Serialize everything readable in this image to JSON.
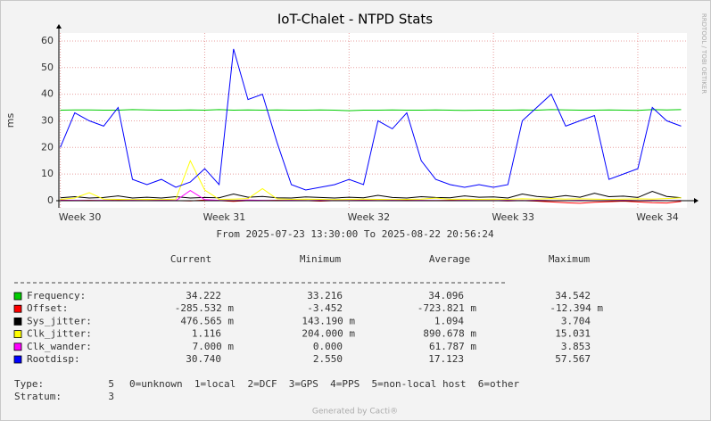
{
  "chart_data": {
    "type": "line",
    "title": "IoT-Chalet - NTPD Stats",
    "subtitle": "From 2025-07-23 13:30:00 To 2025-08-22 20:56:24",
    "ylabel": "ms",
    "watermark": "RRDTOOL / TOBI OETIKER",
    "footer": "Generated by Cacti®",
    "grid": true,
    "xlim": [
      29.99,
      34.34
    ],
    "xticks": [
      {
        "value": 30,
        "label": "Week 30"
      },
      {
        "value": 31,
        "label": "Week 31"
      },
      {
        "value": 32,
        "label": "Week 32"
      },
      {
        "value": 33,
        "label": "Week 33"
      },
      {
        "value": 34,
        "label": "Week 34"
      }
    ],
    "ylim": [
      -2.7,
      63
    ],
    "yticks": [
      0,
      10,
      20,
      30,
      40,
      50,
      60
    ],
    "x": [
      30.0,
      30.1,
      30.2,
      30.3,
      30.4,
      30.5,
      30.6,
      30.7,
      30.8,
      30.9,
      31.0,
      31.1,
      31.2,
      31.3,
      31.4,
      31.5,
      31.6,
      31.7,
      31.8,
      31.9,
      32.0,
      32.1,
      32.2,
      32.3,
      32.4,
      32.5,
      32.6,
      32.7,
      32.8,
      32.9,
      33.0,
      33.1,
      33.2,
      33.3,
      33.4,
      33.5,
      33.6,
      33.7,
      33.8,
      33.9,
      34.0,
      34.1,
      34.2,
      34.3
    ],
    "stat_headers": [
      "Current",
      "Minimum",
      "Average",
      "Maximum"
    ],
    "series": [
      {
        "name": "Frequency:",
        "color": "#00cc00",
        "stats": [
          "34.222",
          "33.216",
          "34.096",
          "34.542"
        ],
        "values": [
          34,
          34.1,
          34.1,
          34,
          34,
          34.2,
          34.1,
          34,
          34,
          34.1,
          34,
          34.2,
          34,
          34.1,
          34,
          34.1,
          34,
          34,
          34.1,
          34,
          33.8,
          34,
          34,
          34.1,
          34,
          34,
          34.1,
          34,
          33.9,
          34,
          34,
          34,
          34.1,
          34,
          34.2,
          34.1,
          34,
          34,
          34.1,
          34,
          33.9,
          34.2,
          34.1,
          34.2
        ]
      },
      {
        "name": "Offset:",
        "color": "#ff0000",
        "stats": [
          "-285.532 m",
          "-3.452",
          "-723.821 m",
          "-12.394 m"
        ],
        "values": [
          0.2,
          0,
          0.1,
          0,
          0.1,
          0,
          0,
          0.1,
          0,
          -0.1,
          0.2,
          0,
          -0.3,
          0,
          0,
          0.1,
          0,
          0,
          -0.2,
          0,
          0,
          0.1,
          0,
          0,
          0.1,
          0,
          0,
          0.1,
          0,
          0,
          0,
          -0.1,
          0,
          -0.2,
          -0.5,
          -0.8,
          -1,
          -0.6,
          -0.4,
          -0.2,
          -0.5,
          -0.8,
          -0.9,
          -0.3
        ]
      },
      {
        "name": "Sys_jitter:",
        "color": "#000000",
        "stats": [
          "476.565 m",
          "143.190 m",
          "1.094",
          "3.704"
        ],
        "values": [
          1.1,
          1.5,
          1,
          1.2,
          1.8,
          1,
          1.3,
          1,
          1.5,
          1,
          1.2,
          1.1,
          2.5,
          1.3,
          1.6,
          1.1,
          1,
          1.4,
          1.2,
          1,
          1.3,
          1.1,
          2,
          1.2,
          1,
          1.5,
          1.2,
          1.1,
          1.8,
          1.3,
          1.4,
          1,
          2.5,
          1.6,
          1.2,
          1.9,
          1.3,
          2.8,
          1.5,
          1.7,
          1.2,
          3.5,
          1.6,
          1.1
        ]
      },
      {
        "name": "Clk_jitter:",
        "color": "#ffff00",
        "stats": [
          "1.116",
          "204.000 m",
          "890.678 m",
          "15.031"
        ],
        "values": [
          0.5,
          1,
          3,
          0.6,
          0.5,
          0.4,
          0.5,
          0.4,
          0.6,
          15,
          4,
          0.5,
          0.6,
          0.8,
          4.5,
          0.7,
          0.5,
          0.6,
          0.5,
          0.4,
          0.5,
          0.6,
          0.5,
          0.4,
          0.5,
          0.6,
          1,
          0.5,
          0.6,
          0.5,
          0.6,
          0.5,
          0.7,
          0.6,
          0.8,
          0.6,
          0.7,
          0.6,
          0.5,
          0.6,
          0.7,
          0.6,
          0.8,
          1.1
        ]
      },
      {
        "name": "Clk_wander:",
        "color": "#ff00ff",
        "stats": [
          "7.000 m",
          "0.000",
          "61.787 m",
          "3.853"
        ],
        "values": [
          0.1,
          0.1,
          0,
          0.1,
          0,
          0.1,
          0,
          0.1,
          0,
          3.8,
          0.4,
          0.1,
          0,
          0.2,
          0.1,
          0,
          0.1,
          0,
          0.1,
          0,
          0,
          0.1,
          0,
          0.1,
          0,
          0.1,
          0,
          0,
          0.1,
          0,
          0,
          0.1,
          0,
          0.1,
          0,
          0,
          0.1,
          0,
          0,
          0.1,
          0,
          0.1,
          0,
          0
        ]
      },
      {
        "name": "Rootdisp:",
        "color": "#0000ff",
        "stats": [
          "30.740",
          "2.550",
          "17.123",
          "57.567"
        ],
        "values": [
          20,
          33,
          30,
          28,
          35,
          8,
          6,
          8,
          5,
          7,
          12,
          6,
          57,
          38,
          40,
          22,
          6,
          4,
          5,
          6,
          8,
          6,
          30,
          27,
          33,
          15,
          8,
          6,
          5,
          6,
          5,
          6,
          30,
          35,
          40,
          28,
          30,
          32,
          8,
          10,
          12,
          35,
          30,
          28
        ]
      }
    ],
    "info": [
      {
        "label": "Type:",
        "value": 5,
        "text": "0=unknown  1=local  2=DCF  3=GPS  4=PPS  5=non-local host  6=other"
      },
      {
        "label": "Stratum:",
        "value": 3
      }
    ]
  }
}
